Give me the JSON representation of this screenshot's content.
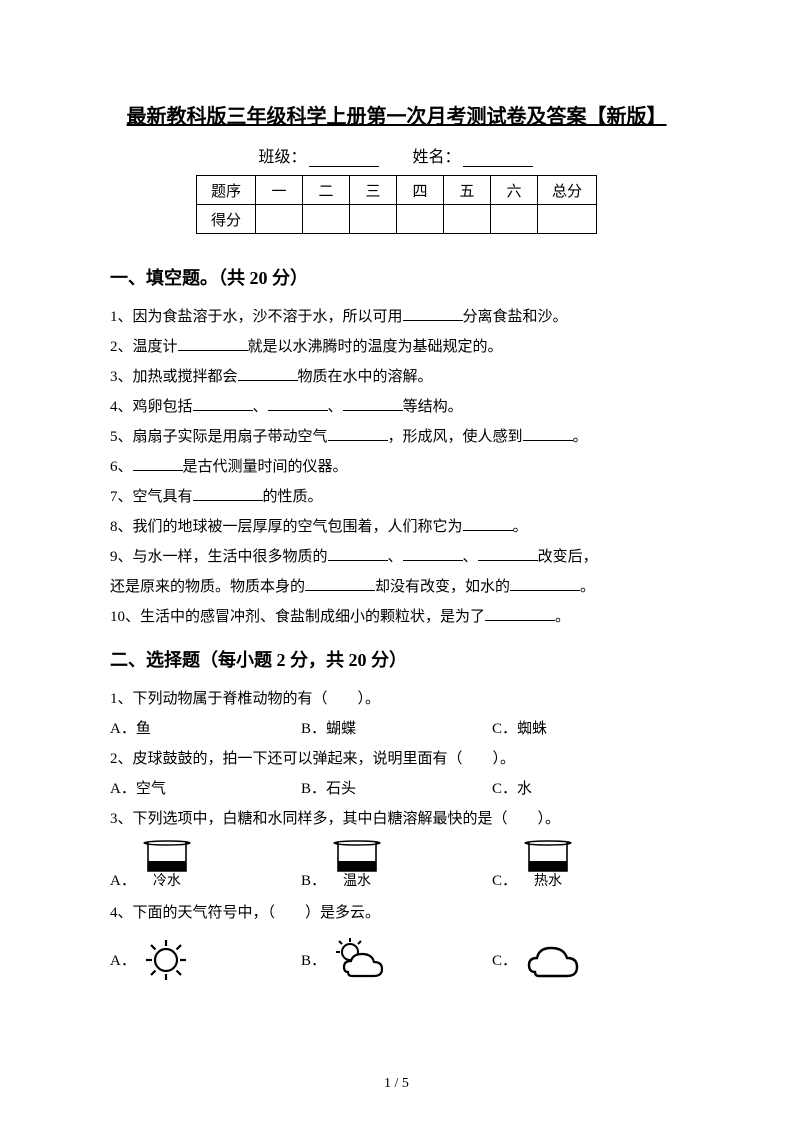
{
  "title": "最新教科版三年级科学上册第一次月考测试卷及答案【新版】",
  "header": {
    "class_label": "班级：",
    "name_label": "姓名："
  },
  "score_table": {
    "row1_label": "题序",
    "row2_label": "得分",
    "cols": [
      "一",
      "二",
      "三",
      "四",
      "五",
      "六"
    ],
    "total_label": "总分"
  },
  "section1": {
    "header": "一、填空题。（共 20 分）",
    "items": [
      {
        "n": "1、",
        "parts": [
          "因为食盐溶于水，沙不溶于水，所以可用",
          60,
          "分离食盐和沙。"
        ]
      },
      {
        "n": "2、",
        "parts": [
          "温度计",
          70,
          "就是以水沸腾时的温度为基础规定的。"
        ]
      },
      {
        "n": "3、",
        "parts": [
          "加热或搅拌都会",
          60,
          "物质在水中的溶解。"
        ]
      },
      {
        "n": "4、",
        "parts": [
          "鸡卵包括",
          60,
          "、",
          60,
          "、",
          60,
          "等结构。"
        ]
      },
      {
        "n": "5、",
        "parts": [
          "扇扇子实际是用扇子带动空气",
          60,
          "，形成风，使人感到",
          50,
          "。"
        ]
      },
      {
        "n": "6、",
        "parts": [
          "",
          50,
          "是古代测量时间的仪器。"
        ]
      },
      {
        "n": "7、",
        "parts": [
          "空气具有",
          70,
          "的性质。"
        ]
      },
      {
        "n": "8、",
        "parts": [
          "我们的地球被一层厚厚的空气包围着，人们称它为",
          50,
          "。"
        ]
      },
      {
        "n": "9、",
        "parts": [
          "与水一样，生活中很多物质的",
          60,
          "、",
          60,
          "、",
          60,
          "改变后，"
        ]
      },
      {
        "n": "",
        "parts": [
          "还是原来的物质。物质本身的",
          70,
          "却没有改变，如水的",
          70,
          "。"
        ]
      },
      {
        "n": "10、",
        "parts": [
          "生活中的感冒冲剂、食盐制成细小的颗粒状，是为了",
          70,
          "。"
        ]
      }
    ]
  },
  "section2": {
    "header": "二、选择题（每小题 2 分，共 20 分）",
    "q1": {
      "stem": "1、下列动物属于脊椎动物的有（　　）。",
      "A": "A．鱼",
      "B": "B．蝴蝶",
      "C": "C．蜘蛛"
    },
    "q2": {
      "stem": "2、皮球鼓鼓的，拍一下还可以弹起来，说明里面有（　　）。",
      "A": "A．空气",
      "B": "B．石头",
      "C": "C．水"
    },
    "q3": {
      "stem": "3、下列选项中，白糖和水同样多，其中白糖溶解最快的是（　　）。",
      "A": "A．",
      "A_label": "冷水",
      "B": "B．",
      "B_label": "温水",
      "C": "C．",
      "C_label": "热水"
    },
    "q4": {
      "stem": "4、下面的天气符号中，（　　）是多云。",
      "A": "A．",
      "B": "B．",
      "C": "C．"
    }
  },
  "page_number": "1 / 5",
  "style": {
    "blank_color": "#000000",
    "font_family": "SimSun",
    "bg": "#ffffff",
    "beaker_stroke": "#000000",
    "beaker_fill": "#000000"
  }
}
